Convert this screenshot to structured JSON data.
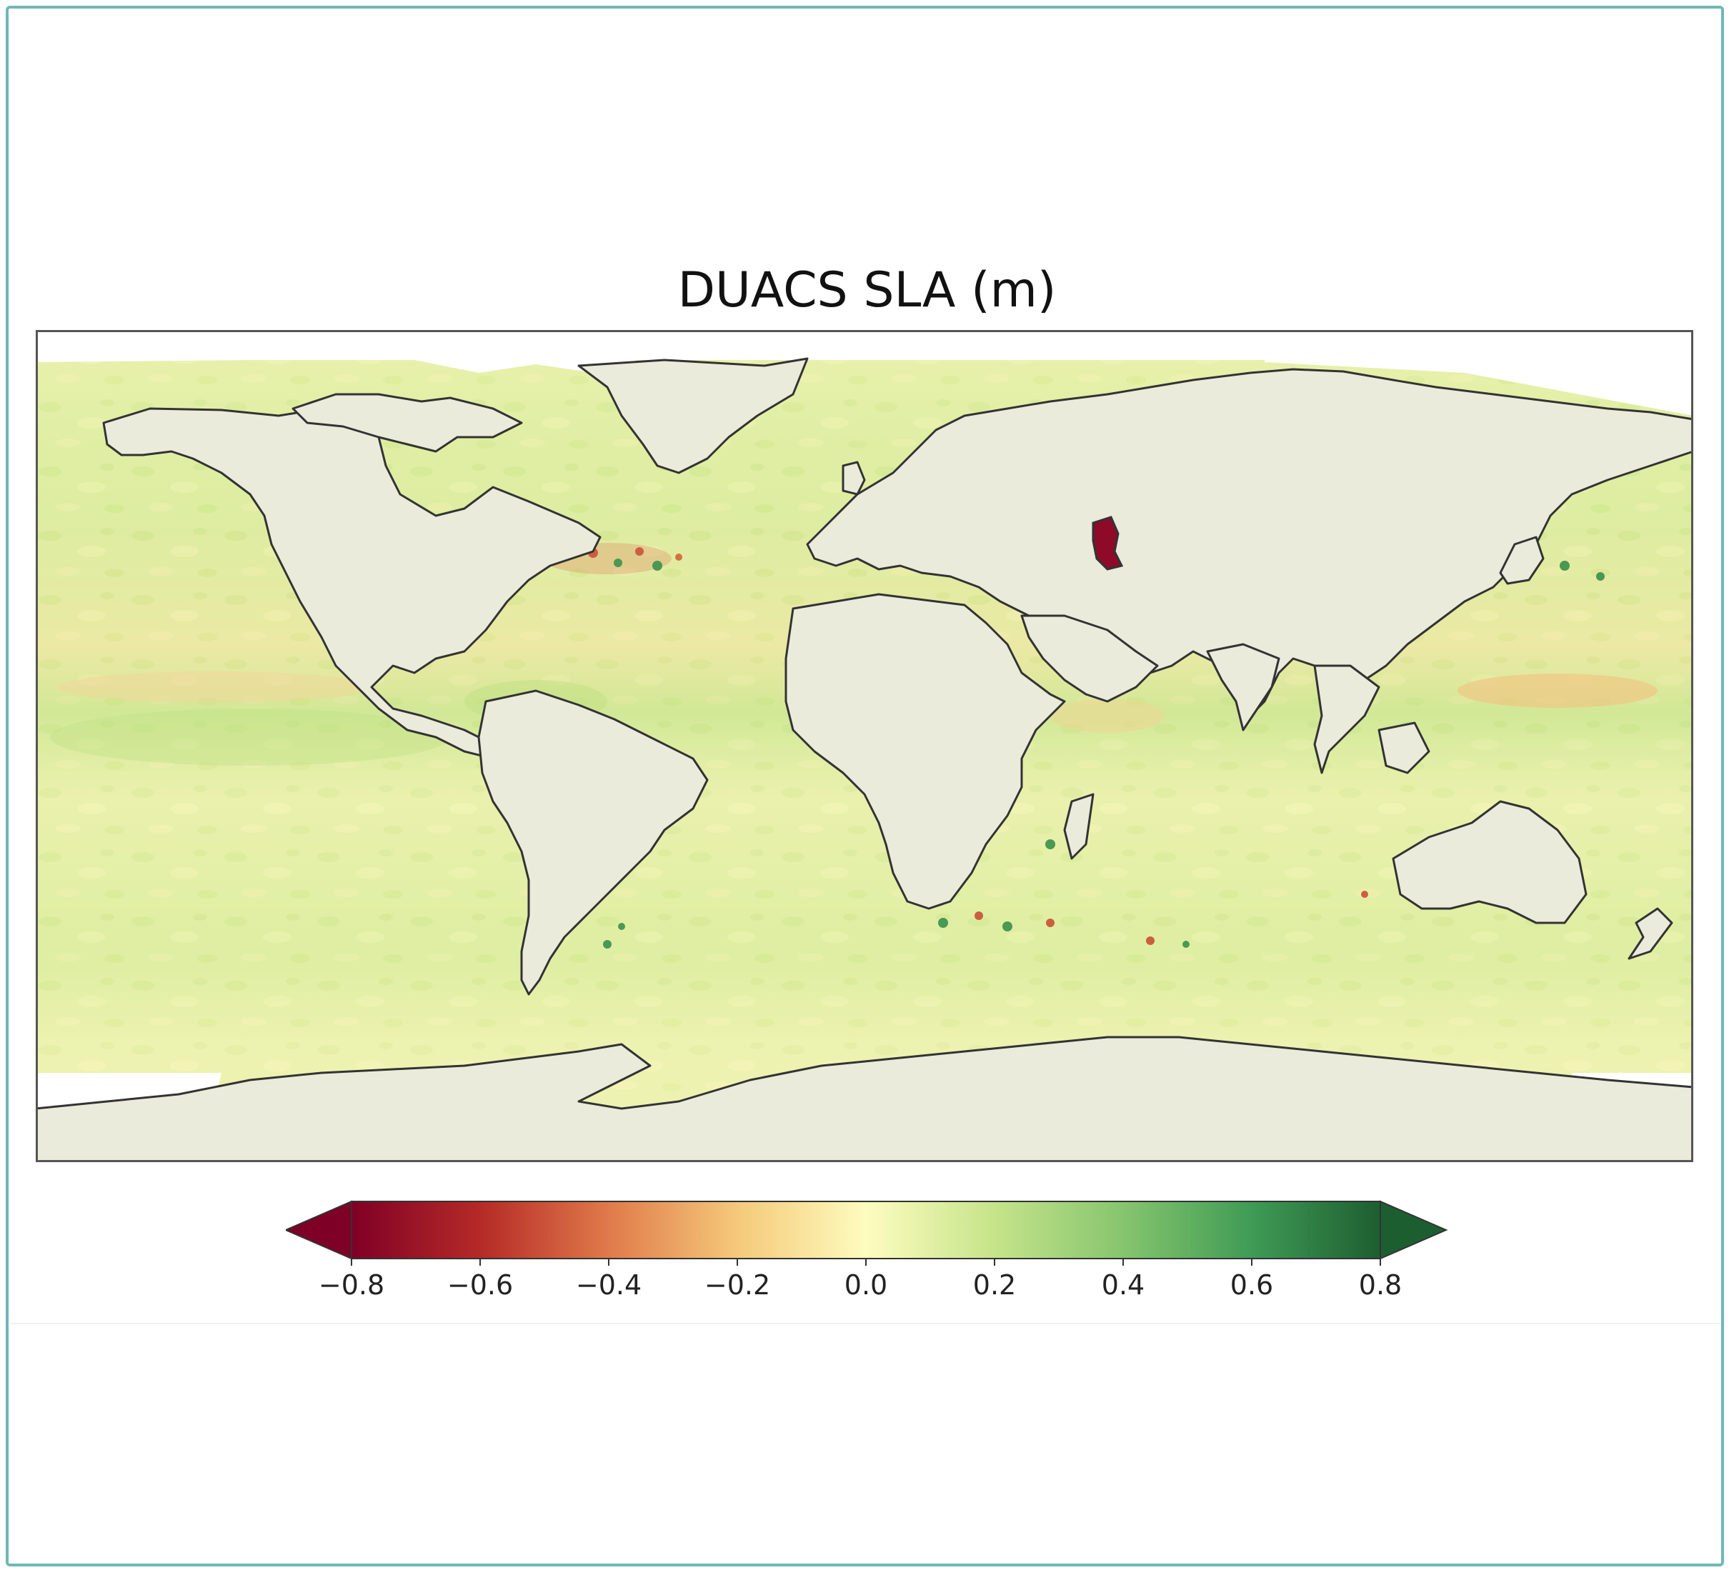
{
  "figure": {
    "title": "DUACS SLA (m)"
  },
  "map": {
    "projection": "PlateCarree",
    "extent_deg": {
      "lon": [
        -180,
        180
      ],
      "lat": [
        -90,
        90
      ]
    },
    "land_color": "#ebebdc",
    "coastline_color": "#333333",
    "no_data_color": "#ffffff",
    "colormap": "RdYlGn"
  },
  "colorbar": {
    "orientation": "horizontal",
    "extend": "both",
    "range": [
      -0.8,
      0.8
    ],
    "ticks": [
      -0.8,
      -0.6,
      -0.4,
      -0.2,
      0.0,
      0.2,
      0.4,
      0.6,
      0.8
    ],
    "tick_labels": [
      "−0.8",
      "−0.6",
      "−0.4",
      "−0.2",
      "0.0",
      "0.2",
      "0.4",
      "0.6",
      "0.8"
    ],
    "colors": [
      "#7f0026",
      "#b52a27",
      "#e07a4a",
      "#f5c97a",
      "#fdfcbf",
      "#c6e48a",
      "#86c56e",
      "#3f9b55",
      "#1d5e30"
    ]
  }
}
